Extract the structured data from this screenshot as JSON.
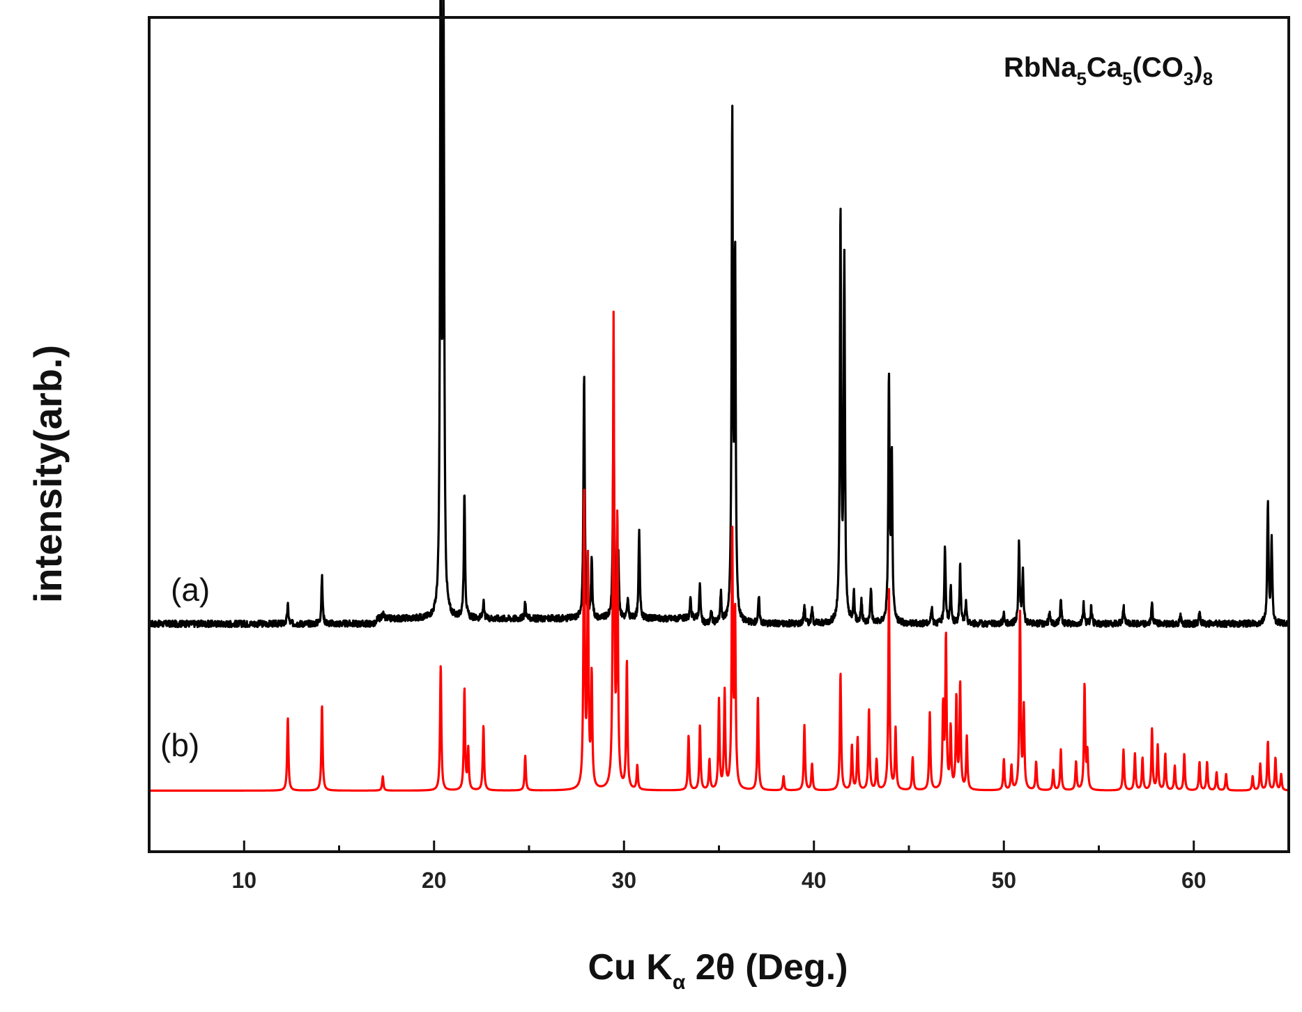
{
  "chart_data": {
    "type": "line",
    "title": "",
    "annotation": {
      "parts": [
        {
          "text": "RbNa",
          "sub": false
        },
        {
          "text": "5",
          "sub": true
        },
        {
          "text": "Ca",
          "sub": false
        },
        {
          "text": "5",
          "sub": true
        },
        {
          "text": "(CO",
          "sub": false
        },
        {
          "text": "3",
          "sub": true
        },
        {
          "text": ")",
          "sub": false
        },
        {
          "text": "8",
          "sub": true
        }
      ]
    },
    "xlabel": {
      "main": "Cu K",
      "sub": "α",
      "rest": " 2θ  (Deg.)"
    },
    "ylabel": "intensity(arb.)",
    "xlim": [
      5,
      65
    ],
    "ylim": [
      -30,
      380
    ],
    "x_ticks": [
      10,
      20,
      30,
      40,
      50,
      60
    ],
    "y_ticks_shown": false,
    "grid": false,
    "legend": "none",
    "series": [
      {
        "name": "(a)",
        "color": "#000000",
        "baseline": 82,
        "noise": 1.6,
        "peaks": [
          {
            "x": 12.3,
            "h": 9
          },
          {
            "x": 14.1,
            "h": 23
          },
          {
            "x": 17.3,
            "h": 3
          },
          {
            "x": 20.35,
            "h": 330
          },
          {
            "x": 20.5,
            "h": 290
          },
          {
            "x": 21.6,
            "h": 62
          },
          {
            "x": 22.6,
            "h": 8
          },
          {
            "x": 24.8,
            "h": 8
          },
          {
            "x": 27.9,
            "h": 120
          },
          {
            "x": 28.3,
            "h": 30
          },
          {
            "x": 29.45,
            "h": 105
          },
          {
            "x": 29.7,
            "h": 30
          },
          {
            "x": 30.2,
            "h": 9
          },
          {
            "x": 30.8,
            "h": 42
          },
          {
            "x": 33.5,
            "h": 9
          },
          {
            "x": 34.0,
            "h": 18
          },
          {
            "x": 34.6,
            "h": 6
          },
          {
            "x": 35.1,
            "h": 14
          },
          {
            "x": 35.7,
            "h": 245
          },
          {
            "x": 35.85,
            "h": 175
          },
          {
            "x": 37.1,
            "h": 13
          },
          {
            "x": 39.5,
            "h": 9
          },
          {
            "x": 39.9,
            "h": 7
          },
          {
            "x": 41.4,
            "h": 200
          },
          {
            "x": 41.6,
            "h": 175
          },
          {
            "x": 42.1,
            "h": 15
          },
          {
            "x": 42.5,
            "h": 11
          },
          {
            "x": 43.0,
            "h": 18
          },
          {
            "x": 43.95,
            "h": 120
          },
          {
            "x": 44.1,
            "h": 80
          },
          {
            "x": 46.2,
            "h": 8
          },
          {
            "x": 46.9,
            "h": 38
          },
          {
            "x": 47.2,
            "h": 18
          },
          {
            "x": 47.7,
            "h": 28
          },
          {
            "x": 48.0,
            "h": 10
          },
          {
            "x": 50.0,
            "h": 5
          },
          {
            "x": 50.8,
            "h": 40
          },
          {
            "x": 51.0,
            "h": 25
          },
          {
            "x": 52.4,
            "h": 5
          },
          {
            "x": 53.0,
            "h": 12
          },
          {
            "x": 54.2,
            "h": 10
          },
          {
            "x": 54.6,
            "h": 8
          },
          {
            "x": 56.3,
            "h": 9
          },
          {
            "x": 57.8,
            "h": 10
          },
          {
            "x": 59.3,
            "h": 4
          },
          {
            "x": 60.3,
            "h": 5
          },
          {
            "x": 63.9,
            "h": 60
          },
          {
            "x": 64.1,
            "h": 40
          }
        ]
      },
      {
        "name": "(b)",
        "color": "#ff0000",
        "baseline": 0,
        "noise": 0,
        "peaks": [
          {
            "x": 12.3,
            "h": 36
          },
          {
            "x": 14.1,
            "h": 42
          },
          {
            "x": 17.3,
            "h": 7
          },
          {
            "x": 20.35,
            "h": 62
          },
          {
            "x": 21.6,
            "h": 50
          },
          {
            "x": 21.8,
            "h": 20
          },
          {
            "x": 22.6,
            "h": 32
          },
          {
            "x": 24.8,
            "h": 17
          },
          {
            "x": 27.9,
            "h": 145
          },
          {
            "x": 28.1,
            "h": 110
          },
          {
            "x": 28.3,
            "h": 55
          },
          {
            "x": 29.45,
            "h": 230
          },
          {
            "x": 29.65,
            "h": 130
          },
          {
            "x": 30.15,
            "h": 63
          },
          {
            "x": 30.7,
            "h": 12
          },
          {
            "x": 33.4,
            "h": 27
          },
          {
            "x": 34.0,
            "h": 32
          },
          {
            "x": 34.5,
            "h": 15
          },
          {
            "x": 35.0,
            "h": 44
          },
          {
            "x": 35.3,
            "h": 48
          },
          {
            "x": 35.7,
            "h": 125
          },
          {
            "x": 35.85,
            "h": 85
          },
          {
            "x": 37.05,
            "h": 46
          },
          {
            "x": 38.4,
            "h": 7
          },
          {
            "x": 39.5,
            "h": 32
          },
          {
            "x": 39.9,
            "h": 13
          },
          {
            "x": 41.4,
            "h": 58
          },
          {
            "x": 42.0,
            "h": 22
          },
          {
            "x": 42.3,
            "h": 26
          },
          {
            "x": 42.9,
            "h": 40
          },
          {
            "x": 43.3,
            "h": 15
          },
          {
            "x": 43.95,
            "h": 100
          },
          {
            "x": 44.3,
            "h": 30
          },
          {
            "x": 45.2,
            "h": 16
          },
          {
            "x": 46.1,
            "h": 38
          },
          {
            "x": 46.8,
            "h": 40
          },
          {
            "x": 46.95,
            "h": 75
          },
          {
            "x": 47.2,
            "h": 30
          },
          {
            "x": 47.5,
            "h": 45
          },
          {
            "x": 47.7,
            "h": 52
          },
          {
            "x": 48.05,
            "h": 26
          },
          {
            "x": 50.0,
            "h": 15
          },
          {
            "x": 50.4,
            "h": 12
          },
          {
            "x": 50.85,
            "h": 88
          },
          {
            "x": 51.05,
            "h": 40
          },
          {
            "x": 51.7,
            "h": 14
          },
          {
            "x": 52.6,
            "h": 10
          },
          {
            "x": 53.0,
            "h": 20
          },
          {
            "x": 53.8,
            "h": 14
          },
          {
            "x": 54.25,
            "h": 52
          },
          {
            "x": 54.4,
            "h": 18
          },
          {
            "x": 56.3,
            "h": 20
          },
          {
            "x": 56.9,
            "h": 18
          },
          {
            "x": 57.3,
            "h": 16
          },
          {
            "x": 57.8,
            "h": 30
          },
          {
            "x": 58.1,
            "h": 22
          },
          {
            "x": 58.5,
            "h": 18
          },
          {
            "x": 59.0,
            "h": 12
          },
          {
            "x": 59.5,
            "h": 18
          },
          {
            "x": 60.3,
            "h": 14
          },
          {
            "x": 60.7,
            "h": 14
          },
          {
            "x": 61.2,
            "h": 9
          },
          {
            "x": 61.7,
            "h": 8
          },
          {
            "x": 63.1,
            "h": 7
          },
          {
            "x": 63.5,
            "h": 13
          },
          {
            "x": 63.9,
            "h": 24
          },
          {
            "x": 64.3,
            "h": 16
          },
          {
            "x": 64.6,
            "h": 8
          }
        ]
      }
    ]
  }
}
